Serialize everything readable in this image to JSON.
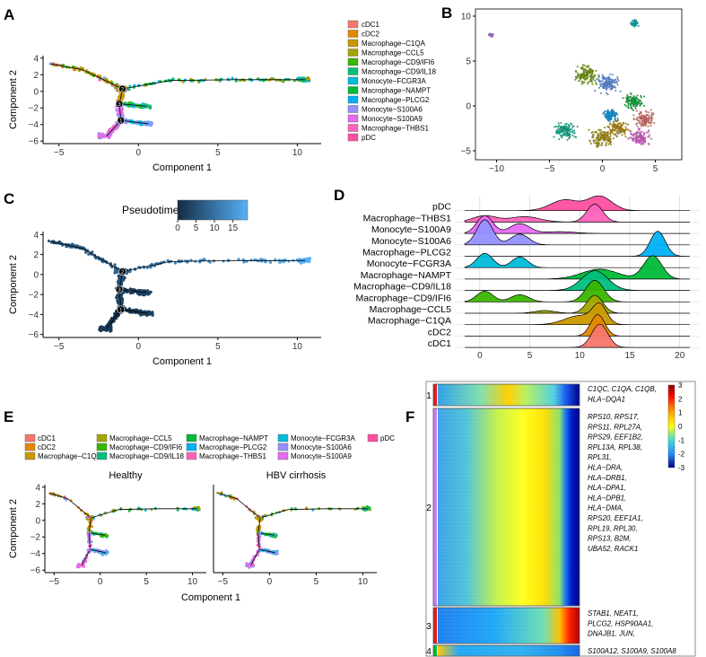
{
  "panel_labels": [
    "A",
    "B",
    "C",
    "D",
    "E",
    "F"
  ],
  "celltypes": [
    {
      "name": "cDC1",
      "color": "#F8766D"
    },
    {
      "name": "cDC2",
      "color": "#E58700"
    },
    {
      "name": "Macrophage−C1QA",
      "color": "#C99800"
    },
    {
      "name": "Macrophage−CCL5",
      "color": "#A3A500"
    },
    {
      "name": "Macrophage−CD9/IFI6",
      "color": "#39B600"
    },
    {
      "name": "Macrophage−CD9/IL18",
      "color": "#00BF7D"
    },
    {
      "name": "Monocyte−FCGR3A",
      "color": "#00BCD8"
    },
    {
      "name": "Macrophage−NAMPT",
      "color": "#00BA38"
    },
    {
      "name": "Macrophage−PLCG2",
      "color": "#00B0F6"
    },
    {
      "name": "Monocyte−S100A6",
      "color": "#9590FF"
    },
    {
      "name": "Monocyte−S100A9",
      "color": "#E76BF3"
    },
    {
      "name": "Macrophage−THBS1",
      "color": "#FF62BC"
    },
    {
      "name": "pDC",
      "color": "#FF4FA0"
    }
  ],
  "chart_data": [
    {
      "id": "A",
      "type": "scatter",
      "title": "",
      "xlabel": "Component 1",
      "ylabel": "Component 2",
      "xlim": [
        -6,
        11.5
      ],
      "ylim": [
        -6.3,
        4.3
      ],
      "xticks": [
        -5,
        0,
        5,
        10
      ],
      "yticks": [
        4,
        2,
        0,
        -2,
        -4,
        -6
      ],
      "branch_points": [
        {
          "label": "2",
          "x": -1.0,
          "y": 0.3
        },
        {
          "label": "3",
          "x": -1.2,
          "y": -1.5
        },
        {
          "label": "1",
          "x": -1.1,
          "y": -3.5
        }
      ]
    },
    {
      "id": "B",
      "type": "scatter",
      "xlim": [
        -12,
        7.5
      ],
      "ylim": [
        -6,
        10.8
      ],
      "xticks": [
        -10,
        -5,
        0,
        5
      ],
      "yticks": [
        10,
        5,
        0,
        -5
      ],
      "clusters": [
        {
          "x": -10.5,
          "y": 7.9,
          "size": 0.3,
          "color": "#C77CFF"
        },
        {
          "x": 3,
          "y": 9.2,
          "size": 0.55,
          "color": "#00BFC4"
        },
        {
          "x": -1.5,
          "y": 3.5,
          "size": 1.6,
          "color": "#7CAE00"
        },
        {
          "x": 0.5,
          "y": 2.5,
          "size": 1.5,
          "color": "#619CFF"
        },
        {
          "x": 3,
          "y": 0.5,
          "size": 1.2,
          "color": "#00BA38"
        },
        {
          "x": 4,
          "y": -1.5,
          "size": 1.3,
          "color": "#F8766D"
        },
        {
          "x": 1.5,
          "y": -2.5,
          "size": 1.3,
          "color": "#CD9600"
        },
        {
          "x": -3.5,
          "y": -2.8,
          "size": 1.4,
          "color": "#00C19A"
        },
        {
          "x": 0,
          "y": -3.5,
          "size": 1.5,
          "color": "#B79F00"
        },
        {
          "x": 3.5,
          "y": -3.5,
          "size": 1.3,
          "color": "#F564E3"
        },
        {
          "x": 0.8,
          "y": -1,
          "size": 1.0,
          "color": "#00A9FF"
        }
      ]
    },
    {
      "id": "C",
      "type": "scatter",
      "xlabel": "Component 1",
      "ylabel": "Component 2",
      "legend_title": "Pseudotime",
      "colorbar_ticks": [
        0,
        5,
        10,
        15
      ],
      "colorbar_range": [
        0,
        19
      ],
      "xlim": [
        -6,
        11.5
      ],
      "ylim": [
        -6.3,
        4.3
      ],
      "xticks": [
        -5,
        0,
        5,
        10
      ],
      "yticks": [
        4,
        2,
        0,
        -2,
        -4,
        -6
      ]
    },
    {
      "id": "D",
      "type": "area",
      "x": [
        0,
        5,
        10,
        15,
        20
      ],
      "xlim": [
        -2.5,
        22
      ],
      "xticks": [
        0,
        5,
        10,
        15,
        20
      ],
      "series": [
        {
          "name": "pDC",
          "color": "#FF4FA0",
          "peaks": [
            [
              8.5,
              0.6,
              1.4
            ],
            [
              12,
              0.8,
              1.2
            ]
          ]
        },
        {
          "name": "Macrophage−THBS1",
          "color": "#FF62BC",
          "peaks": [
            [
              0.5,
              0.35,
              1.2
            ],
            [
              4.5,
              0.3,
              1.5
            ],
            [
              11.5,
              1.0,
              0.8
            ]
          ]
        },
        {
          "name": "Monocyte−S100A9",
          "color": "#E76BF3",
          "peaks": [
            [
              0.5,
              1.0,
              0.8
            ],
            [
              4,
              0.55,
              1.0
            ],
            [
              8,
              0.1,
              1.5
            ]
          ]
        },
        {
          "name": "Monocyte−S100A6",
          "color": "#9590FF",
          "peaks": [
            [
              0.5,
              1.4,
              0.8
            ],
            [
              4,
              0.6,
              0.9
            ]
          ]
        },
        {
          "name": "Macrophage−PLCG2",
          "color": "#00B0F6",
          "peaks": [
            [
              17.8,
              1.4,
              0.75
            ]
          ]
        },
        {
          "name": "Monocyte−FCGR3A",
          "color": "#00BCD8",
          "peaks": [
            [
              0.5,
              0.8,
              0.8
            ],
            [
              4,
              0.6,
              0.8
            ]
          ]
        },
        {
          "name": "Macrophage−NAMPT",
          "color": "#00BA38",
          "peaks": [
            [
              12,
              0.55,
              1.8
            ],
            [
              17.3,
              1.3,
              0.9
            ]
          ]
        },
        {
          "name": "Macrophage−CD9/IL18",
          "color": "#00BF7D",
          "peaks": [
            [
              11.5,
              1.1,
              1.3
            ]
          ]
        },
        {
          "name": "Macrophage−CD9/IFI6",
          "color": "#39B600",
          "peaks": [
            [
              0.5,
              0.6,
              0.8
            ],
            [
              4,
              0.4,
              0.9
            ],
            [
              11.5,
              1.2,
              0.9
            ]
          ]
        },
        {
          "name": "Macrophage−CCL5",
          "color": "#A3A500",
          "peaks": [
            [
              6.5,
              0.15,
              1.0
            ],
            [
              11.5,
              1.0,
              0.8
            ]
          ]
        },
        {
          "name": "Macrophage−C1QA",
          "color": "#C99800",
          "peaks": [
            [
              10,
              0.5,
              1.5
            ],
            [
              12,
              1.0,
              0.7
            ]
          ]
        },
        {
          "name": "cDC2",
          "color": "#E58700",
          "peaks": [
            [
              11.8,
              1.2,
              0.7
            ]
          ]
        },
        {
          "name": "cDC1",
          "color": "#F8766D",
          "peaks": [
            [
              12,
              1.3,
              0.8
            ]
          ]
        }
      ]
    },
    {
      "id": "E",
      "type": "scatter",
      "facets": [
        "Healthy",
        "HBV cirrhosis"
      ],
      "xlabel": "Component 1",
      "ylabel": "Component 2",
      "xlim": [
        -6,
        11.5
      ],
      "ylim": [
        -6.3,
        4.3
      ],
      "xticks": [
        -5,
        0,
        5,
        10
      ],
      "yticks": [
        4,
        2,
        0,
        -2,
        -4,
        -6
      ]
    },
    {
      "id": "F",
      "type": "heatmap",
      "colorbar_ticks": [
        3,
        2,
        1,
        0,
        -1,
        -2,
        -3
      ],
      "clusters": [
        {
          "label": "1",
          "genes": [
            "C1QC, C1QA, C1QB,",
            "HLA−DQA1"
          ]
        },
        {
          "label": "2",
          "genes": [
            "RPS10, RPS17,",
            "RPS11, RPL27A,",
            "RPS29, EEF1B2,",
            "RPL13A, RPL38,",
            "RPL31,",
            "HLA−DRA,",
            "HLA−DRB1,",
            "HLA−DPA1,",
            "HLA−DPB1,",
            "HLA−DMA,",
            "RPS20, EEF1A1,",
            "RPL19, RPL30,",
            "RPS13, B2M,",
            "UBA52, RACK1"
          ]
        },
        {
          "label": "3",
          "genes": [
            "STAB1, NEAT1,",
            "PLCG2, HSP90AA1,",
            "DNAJB1, JUN,"
          ]
        },
        {
          "label": "4",
          "genes": [
            "S100A12, S100A9, S100A8"
          ]
        }
      ]
    }
  ]
}
